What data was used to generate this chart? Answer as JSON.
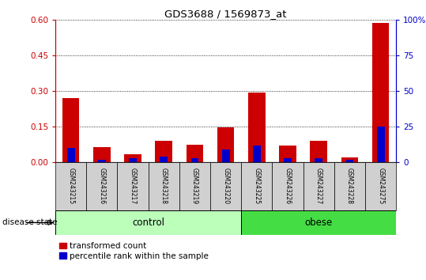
{
  "title": "GDS3688 / 1569873_at",
  "samples": [
    "GSM243215",
    "GSM243216",
    "GSM243217",
    "GSM243218",
    "GSM243219",
    "GSM243220",
    "GSM243225",
    "GSM243226",
    "GSM243227",
    "GSM243228",
    "GSM243275"
  ],
  "red_values": [
    0.27,
    0.065,
    0.035,
    0.09,
    0.075,
    0.148,
    0.295,
    0.07,
    0.09,
    0.02,
    0.585
  ],
  "blue_pct": [
    10,
    2,
    3,
    4,
    3,
    9,
    12,
    3,
    3,
    2,
    25
  ],
  "n_control": 6,
  "n_obese": 5,
  "ylim_left": [
    0,
    0.6
  ],
  "ylim_right": [
    0,
    100
  ],
  "yticks_left": [
    0,
    0.15,
    0.3,
    0.45,
    0.6
  ],
  "yticks_right": [
    0,
    25,
    50,
    75,
    100
  ],
  "red_color": "#cc0000",
  "blue_color": "#0000cc",
  "control_color": "#bbffbb",
  "obese_color": "#44dd44",
  "label_bg_color": "#d0d0d0",
  "legend_red": "transformed count",
  "legend_blue": "percentile rank within the sample",
  "group_label": "disease state",
  "control_label": "control",
  "obese_label": "obese"
}
